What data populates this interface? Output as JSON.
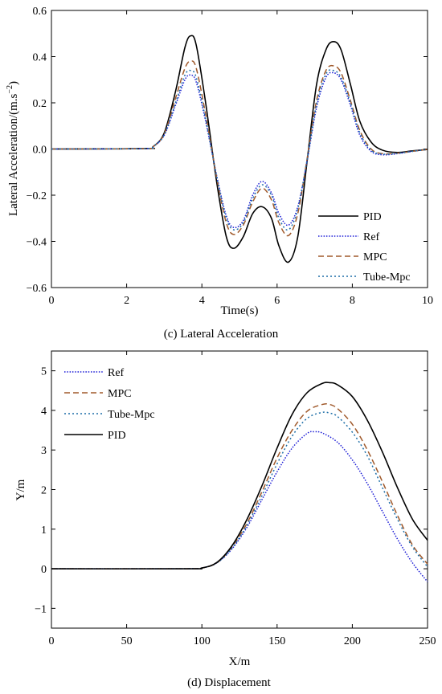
{
  "chart_data": [
    {
      "type": "line",
      "caption": "(c) Lateral Acceleration",
      "xlabel": "Time(s)",
      "ylabel_main": "Lateral Acceleration/(m.s",
      "ylabel_exp": "−2",
      "ylabel_close": ")",
      "xlim": [
        0,
        10
      ],
      "ylim": [
        -0.6,
        0.6
      ],
      "xticks": [
        "0",
        "2",
        "4",
        "6",
        "8",
        "10"
      ],
      "yticks": [
        "−0.6",
        "−0.4",
        "−0.2",
        "0.0",
        "0.2",
        "0.4",
        "0.6"
      ],
      "legend_position": "bottom-right",
      "series": [
        {
          "name": "PID",
          "color": "#000000",
          "style": "solid",
          "x": [
            0,
            2.5,
            2.7,
            3.0,
            3.3,
            3.55,
            3.7,
            3.85,
            4.1,
            4.4,
            4.65,
            4.85,
            5.1,
            5.35,
            5.6,
            5.85,
            6.05,
            6.3,
            6.55,
            6.8,
            7.05,
            7.3,
            7.5,
            7.7,
            7.95,
            8.2,
            8.5,
            8.8,
            9.2,
            9.6,
            10
          ],
          "y": [
            0,
            0.002,
            0.01,
            0.07,
            0.25,
            0.44,
            0.49,
            0.45,
            0.2,
            -0.15,
            -0.38,
            -0.43,
            -0.38,
            -0.28,
            -0.25,
            -0.3,
            -0.42,
            -0.49,
            -0.38,
            -0.05,
            0.28,
            0.43,
            0.465,
            0.43,
            0.28,
            0.12,
            0.03,
            -0.005,
            -0.015,
            -0.008,
            -0.002
          ]
        },
        {
          "name": "Ref",
          "color": "#1b1bd6",
          "style": "dotted",
          "x": [
            0,
            2.5,
            2.7,
            3.0,
            3.3,
            3.55,
            3.7,
            3.85,
            4.1,
            4.4,
            4.65,
            4.85,
            5.1,
            5.35,
            5.6,
            5.85,
            6.05,
            6.3,
            6.55,
            6.8,
            7.05,
            7.3,
            7.5,
            7.7,
            7.95,
            8.2,
            8.5,
            8.8,
            9.2,
            9.6,
            10
          ],
          "y": [
            0,
            0.002,
            0.01,
            0.06,
            0.19,
            0.3,
            0.32,
            0.29,
            0.12,
            -0.12,
            -0.29,
            -0.34,
            -0.31,
            -0.2,
            -0.14,
            -0.19,
            -0.28,
            -0.33,
            -0.25,
            -0.05,
            0.18,
            0.31,
            0.33,
            0.3,
            0.19,
            0.06,
            -0.01,
            -0.025,
            -0.02,
            -0.01,
            -0.002
          ]
        },
        {
          "name": "MPC",
          "color": "#a05a2c",
          "style": "dashed",
          "x": [
            0,
            2.5,
            2.7,
            3.0,
            3.3,
            3.55,
            3.7,
            3.85,
            4.1,
            4.4,
            4.65,
            4.85,
            5.1,
            5.35,
            5.6,
            5.85,
            6.05,
            6.3,
            6.55,
            6.8,
            7.05,
            7.3,
            7.5,
            7.7,
            7.95,
            8.2,
            8.5,
            8.8,
            9.2,
            9.6,
            10
          ],
          "y": [
            0,
            0.002,
            0.01,
            0.065,
            0.22,
            0.35,
            0.38,
            0.35,
            0.15,
            -0.13,
            -0.32,
            -0.37,
            -0.33,
            -0.23,
            -0.17,
            -0.22,
            -0.32,
            -0.375,
            -0.28,
            -0.04,
            0.21,
            0.34,
            0.36,
            0.33,
            0.21,
            0.08,
            0.0,
            -0.02,
            -0.018,
            -0.01,
            -0.002
          ]
        },
        {
          "name": "Tube-Mpc",
          "color": "#1f6fa8",
          "style": "dotted-wide",
          "x": [
            0,
            2.5,
            2.7,
            3.0,
            3.3,
            3.55,
            3.7,
            3.85,
            4.1,
            4.4,
            4.65,
            4.85,
            5.1,
            5.35,
            5.6,
            5.85,
            6.05,
            6.3,
            6.55,
            6.8,
            7.05,
            7.3,
            7.5,
            7.7,
            7.95,
            8.2,
            8.5,
            8.8,
            9.2,
            9.6,
            10
          ],
          "y": [
            0,
            0.002,
            0.01,
            0.062,
            0.2,
            0.32,
            0.34,
            0.31,
            0.13,
            -0.125,
            -0.3,
            -0.35,
            -0.32,
            -0.215,
            -0.155,
            -0.2,
            -0.3,
            -0.35,
            -0.26,
            -0.045,
            0.195,
            0.325,
            0.34,
            0.31,
            0.2,
            0.07,
            -0.005,
            -0.022,
            -0.019,
            -0.01,
            -0.002
          ]
        }
      ]
    },
    {
      "type": "line",
      "caption": "(d)  Displacement",
      "xlabel": "X/m",
      "ylabel": "Y/m",
      "xlim": [
        0,
        250
      ],
      "ylim": [
        -1.5,
        5.5
      ],
      "xticks": [
        "0",
        "50",
        "100",
        "150",
        "200",
        "250"
      ],
      "yticks": [
        "−1",
        "0",
        "1",
        "2",
        "3",
        "4",
        "5"
      ],
      "legend_position": "top-left",
      "series": [
        {
          "name": "Ref",
          "color": "#1b1bd6",
          "style": "dotted",
          "x": [
            0,
            90,
            100,
            110,
            120,
            130,
            140,
            150,
            160,
            170,
            175,
            180,
            190,
            200,
            210,
            220,
            230,
            240,
            250
          ],
          "y": [
            0,
            0,
            0.02,
            0.15,
            0.5,
            1.05,
            1.75,
            2.45,
            3.05,
            3.42,
            3.46,
            3.43,
            3.2,
            2.75,
            2.15,
            1.45,
            0.75,
            0.15,
            -0.33
          ]
        },
        {
          "name": "MPC",
          "color": "#a05a2c",
          "style": "dashed",
          "x": [
            0,
            90,
            100,
            110,
            120,
            130,
            140,
            150,
            160,
            170,
            180,
            185,
            190,
            200,
            210,
            220,
            230,
            240,
            250
          ],
          "y": [
            0,
            0,
            0.02,
            0.15,
            0.55,
            1.15,
            1.95,
            2.8,
            3.5,
            3.98,
            4.15,
            4.15,
            4.05,
            3.65,
            3.0,
            2.2,
            1.35,
            0.6,
            0.12
          ]
        },
        {
          "name": "Tube-Mpc",
          "color": "#1f6fa8",
          "style": "dotted-wide",
          "x": [
            0,
            90,
            100,
            110,
            120,
            130,
            140,
            150,
            160,
            170,
            180,
            185,
            190,
            200,
            210,
            220,
            230,
            240,
            250
          ],
          "y": [
            0,
            0,
            0.02,
            0.15,
            0.52,
            1.1,
            1.85,
            2.65,
            3.35,
            3.8,
            3.95,
            3.93,
            3.85,
            3.45,
            2.85,
            2.05,
            1.25,
            0.55,
            0.05
          ]
        },
        {
          "name": "PID",
          "color": "#000000",
          "style": "solid",
          "x": [
            0,
            90,
            100,
            110,
            120,
            130,
            140,
            150,
            160,
            170,
            180,
            185,
            190,
            200,
            210,
            220,
            230,
            240,
            250
          ],
          "y": [
            0,
            0,
            0.02,
            0.16,
            0.58,
            1.25,
            2.1,
            3.05,
            3.9,
            4.45,
            4.68,
            4.7,
            4.65,
            4.35,
            3.75,
            2.95,
            2.05,
            1.25,
            0.72
          ]
        }
      ]
    }
  ]
}
